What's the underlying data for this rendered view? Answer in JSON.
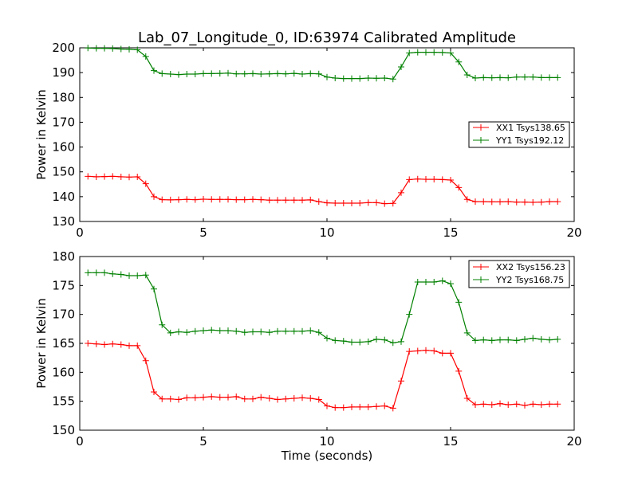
{
  "chart_data": [
    {
      "type": "line",
      "title": "Lab_07_Longitude_0, ID:63974 Calibrated Amplitude",
      "xlabel": "",
      "ylabel": "Power in Kelvin",
      "xlim": [
        0,
        20
      ],
      "ylim": [
        130,
        200
      ],
      "xticks": [
        "0",
        "5",
        "10",
        "15",
        "20"
      ],
      "yticks": [
        "130",
        "140",
        "150",
        "160",
        "170",
        "180",
        "190",
        "200"
      ],
      "grid": false,
      "legend_position": "center-right",
      "x": [
        0.33,
        0.67,
        1.0,
        1.33,
        1.67,
        2.0,
        2.33,
        2.67,
        3.0,
        3.33,
        3.67,
        4.0,
        4.33,
        4.67,
        5.0,
        5.33,
        5.67,
        6.0,
        6.33,
        6.67,
        7.0,
        7.33,
        7.67,
        8.0,
        8.33,
        8.67,
        9.0,
        9.33,
        9.67,
        10.0,
        10.33,
        10.67,
        11.0,
        11.33,
        11.67,
        12.0,
        12.33,
        12.67,
        13.0,
        13.33,
        13.67,
        14.0,
        14.33,
        14.67,
        15.0,
        15.33,
        15.67,
        16.0,
        16.33,
        16.67,
        17.0,
        17.33,
        17.67,
        18.0,
        18.33,
        18.67,
        19.0,
        19.33
      ],
      "series": [
        {
          "name": "XX1 Tsys138.65",
          "color": "#ff0000",
          "values": [
            148.2,
            148.0,
            148.1,
            148.2,
            148.0,
            147.9,
            148.0,
            145.2,
            140.0,
            138.8,
            138.7,
            138.8,
            138.9,
            138.8,
            139.0,
            138.9,
            138.9,
            138.9,
            138.8,
            138.8,
            138.9,
            138.8,
            138.6,
            138.6,
            138.6,
            138.6,
            138.6,
            138.7,
            138.0,
            137.5,
            137.4,
            137.4,
            137.4,
            137.4,
            137.6,
            137.6,
            137.2,
            137.3,
            141.6,
            146.9,
            147.1,
            147.0,
            147.0,
            146.9,
            146.7,
            143.7,
            138.9,
            138.0,
            138.0,
            137.9,
            137.9,
            138.0,
            137.8,
            137.8,
            137.7,
            137.8,
            138.0,
            138.0
          ]
        },
        {
          "name": "YY1 Tsys192.12",
          "color": "#008000",
          "values": [
            199.9,
            199.8,
            199.8,
            199.7,
            199.5,
            199.4,
            199.2,
            196.5,
            190.8,
            189.6,
            189.4,
            189.2,
            189.4,
            189.4,
            189.6,
            189.6,
            189.7,
            189.8,
            189.5,
            189.5,
            189.6,
            189.4,
            189.5,
            189.6,
            189.5,
            189.7,
            189.4,
            189.6,
            189.5,
            188.2,
            187.8,
            187.6,
            187.6,
            187.6,
            187.8,
            187.7,
            187.8,
            187.4,
            192.3,
            197.9,
            198.2,
            198.2,
            198.2,
            198.1,
            197.9,
            194.3,
            189.1,
            187.8,
            188.0,
            187.9,
            188.0,
            187.9,
            188.2,
            188.2,
            188.2,
            188.0,
            188.0,
            188.0
          ]
        }
      ]
    },
    {
      "type": "line",
      "title": "",
      "xlabel": "Time (seconds)",
      "ylabel": "Power in Kelvin",
      "xlim": [
        0,
        20
      ],
      "ylim": [
        150,
        180
      ],
      "xticks": [
        "0",
        "5",
        "10",
        "15",
        "20"
      ],
      "yticks": [
        "150",
        "155",
        "160",
        "165",
        "170",
        "175",
        "180"
      ],
      "grid": false,
      "legend_position": "top-right",
      "x": [
        0.33,
        0.67,
        1.0,
        1.33,
        1.67,
        2.0,
        2.33,
        2.67,
        3.0,
        3.33,
        3.67,
        4.0,
        4.33,
        4.67,
        5.0,
        5.33,
        5.67,
        6.0,
        6.33,
        6.67,
        7.0,
        7.33,
        7.67,
        8.0,
        8.33,
        8.67,
        9.0,
        9.33,
        9.67,
        10.0,
        10.33,
        10.67,
        11.0,
        11.33,
        11.67,
        12.0,
        12.33,
        12.67,
        13.0,
        13.33,
        13.67,
        14.0,
        14.33,
        14.67,
        15.0,
        15.33,
        15.67,
        16.0,
        16.33,
        16.67,
        17.0,
        17.33,
        17.67,
        18.0,
        18.33,
        18.67,
        19.0,
        19.33
      ],
      "series": [
        {
          "name": "XX2 Tsys156.23",
          "color": "#ff0000",
          "values": [
            165.0,
            164.9,
            164.8,
            164.9,
            164.8,
            164.6,
            164.6,
            162.0,
            156.6,
            155.4,
            155.4,
            155.3,
            155.6,
            155.6,
            155.7,
            155.8,
            155.7,
            155.7,
            155.8,
            155.4,
            155.4,
            155.7,
            155.5,
            155.3,
            155.4,
            155.5,
            155.6,
            155.5,
            155.3,
            154.2,
            153.9,
            153.9,
            154.0,
            154.0,
            154.0,
            154.1,
            154.2,
            153.8,
            158.5,
            163.6,
            163.7,
            163.8,
            163.7,
            163.3,
            163.3,
            160.2,
            155.5,
            154.4,
            154.5,
            154.4,
            154.6,
            154.4,
            154.5,
            154.3,
            154.5,
            154.4,
            154.5,
            154.5
          ]
        },
        {
          "name": "YY2 Tsys168.75",
          "color": "#008000",
          "values": [
            177.2,
            177.2,
            177.2,
            177.0,
            176.9,
            176.7,
            176.7,
            176.8,
            174.4,
            168.2,
            166.8,
            167.0,
            166.9,
            167.1,
            167.2,
            167.3,
            167.2,
            167.2,
            167.1,
            166.9,
            167.0,
            167.0,
            166.9,
            167.1,
            167.1,
            167.1,
            167.1,
            167.2,
            166.9,
            165.9,
            165.5,
            165.4,
            165.2,
            165.2,
            165.3,
            165.7,
            165.6,
            165.1,
            165.3,
            170.0,
            175.6,
            175.6,
            175.6,
            175.8,
            175.3,
            172.1,
            166.8,
            165.5,
            165.6,
            165.5,
            165.6,
            165.6,
            165.5,
            165.7,
            165.9,
            165.7,
            165.6,
            165.7
          ]
        }
      ]
    }
  ]
}
